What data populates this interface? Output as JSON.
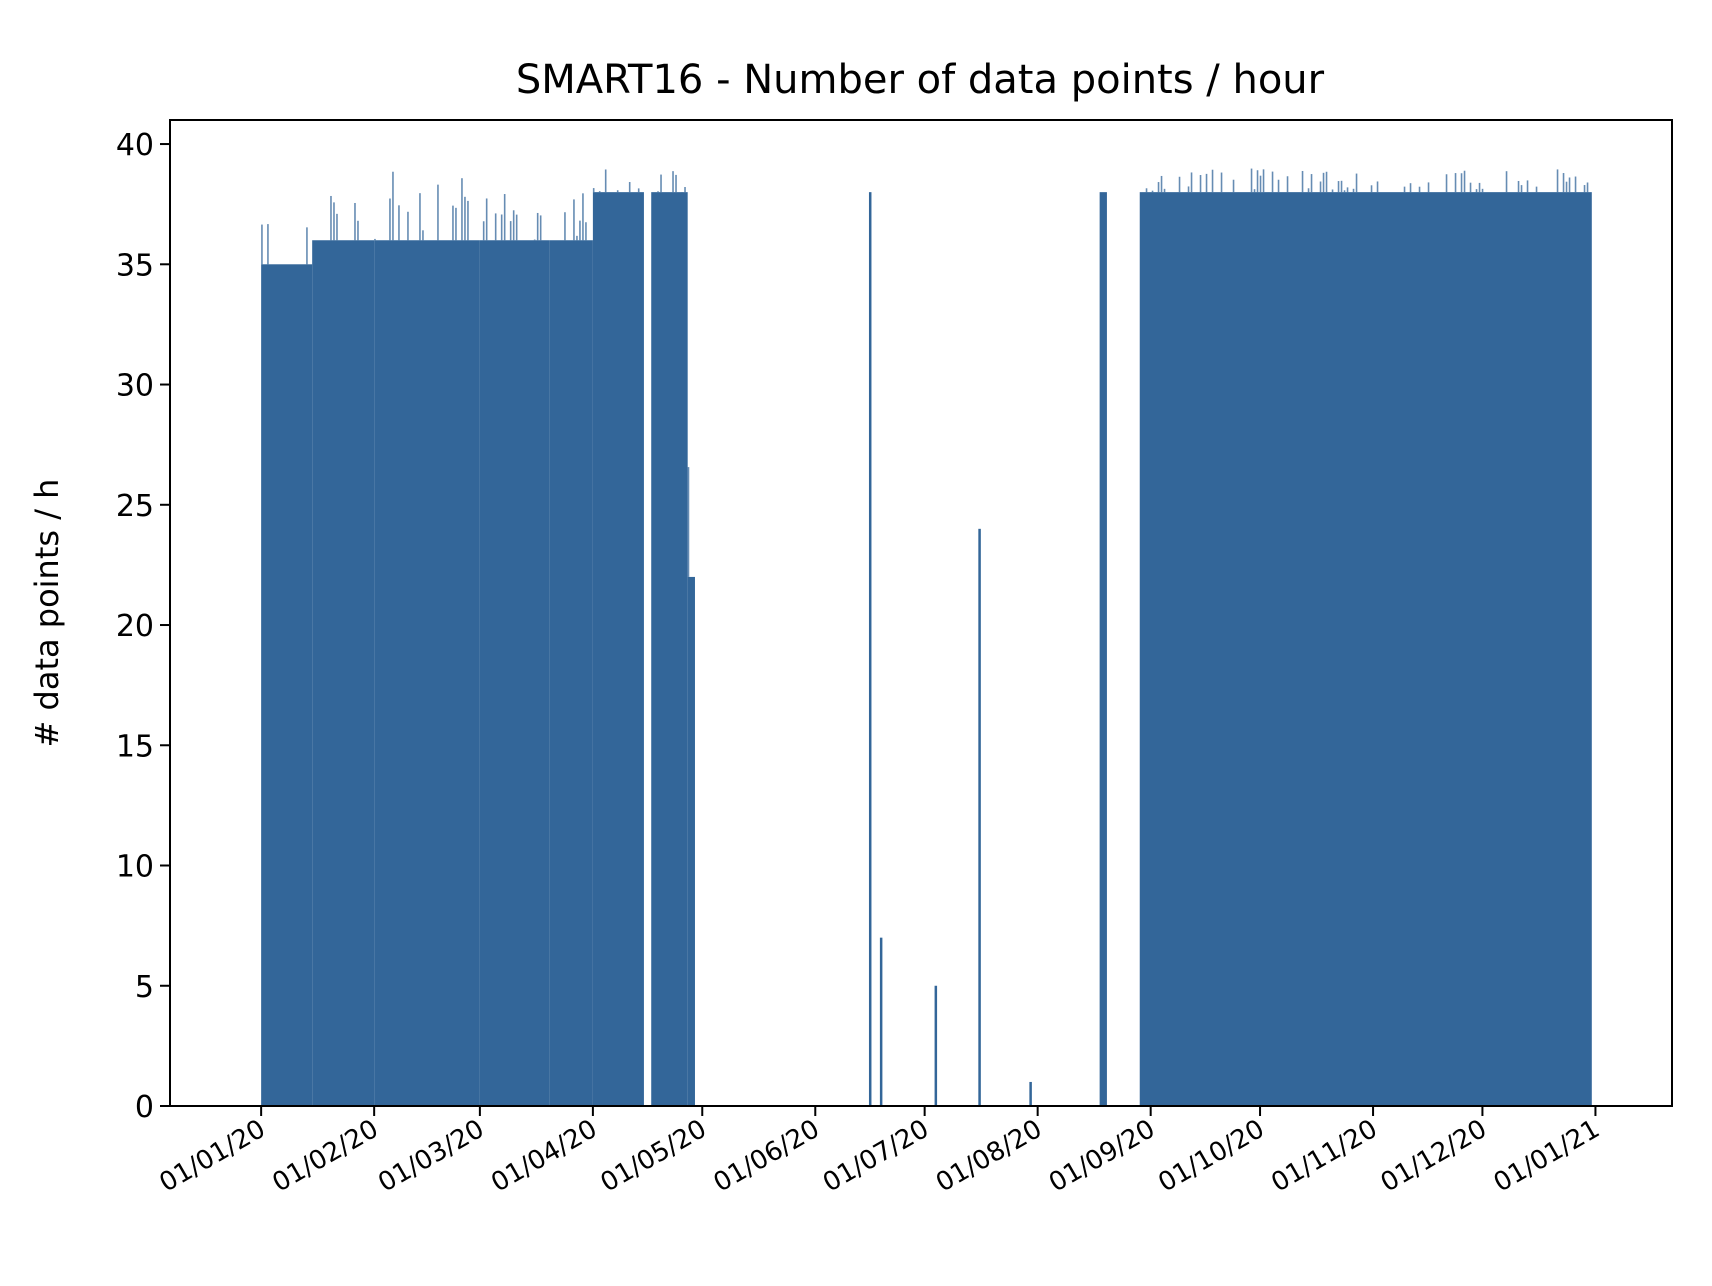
{
  "chart_data": {
    "type": "bar",
    "title": "SMART16 -  Number of data points / hour",
    "xlabel": "",
    "ylabel": "# data points / h",
    "color": "#336699",
    "xlim": [
      "2019-12-07",
      "2021-01-22"
    ],
    "ylim": [
      0,
      41
    ],
    "yticks": [
      0,
      5,
      10,
      15,
      20,
      25,
      30,
      35,
      40
    ],
    "xticks": [
      {
        "date": "2020-01-01",
        "label": "01/01/20"
      },
      {
        "date": "2020-02-01",
        "label": "01/02/20"
      },
      {
        "date": "2020-03-01",
        "label": "01/03/20"
      },
      {
        "date": "2020-04-01",
        "label": "01/04/20"
      },
      {
        "date": "2020-05-01",
        "label": "01/05/20"
      },
      {
        "date": "2020-06-01",
        "label": "01/06/20"
      },
      {
        "date": "2020-07-01",
        "label": "01/07/20"
      },
      {
        "date": "2020-08-01",
        "label": "01/08/20"
      },
      {
        "date": "2020-09-01",
        "label": "01/09/20"
      },
      {
        "date": "2020-10-01",
        "label": "01/10/20"
      },
      {
        "date": "2020-11-01",
        "label": "01/11/20"
      },
      {
        "date": "2020-12-01",
        "label": "01/12/20"
      },
      {
        "date": "2021-01-01",
        "label": "01/01/21"
      }
    ],
    "segments": [
      {
        "start": "2020-01-01",
        "end": "2020-01-15",
        "base": 35,
        "peak": 37
      },
      {
        "start": "2020-01-15",
        "end": "2020-02-01",
        "base": 36,
        "peak": 38
      },
      {
        "start": "2020-02-01",
        "end": "2020-03-01",
        "base": 36,
        "peak": 39
      },
      {
        "start": "2020-03-01",
        "end": "2020-03-20",
        "base": 36,
        "peak": 38
      },
      {
        "start": "2020-03-20",
        "end": "2020-04-01",
        "base": 36,
        "peak": 38
      },
      {
        "start": "2020-04-01",
        "end": "2020-04-15",
        "base": 38,
        "peak": 39
      },
      {
        "start": "2020-04-17",
        "end": "2020-04-27",
        "base": 38,
        "peak": 39
      },
      {
        "start": "2020-04-27",
        "end": "2020-04-29",
        "base": 22,
        "peak": 39
      },
      {
        "start": "2020-08-18",
        "end": "2020-08-20",
        "base": 38,
        "peak": 39
      },
      {
        "start": "2020-08-29",
        "end": "2020-12-31",
        "base": 38,
        "peak": 39
      }
    ],
    "spikes": [
      {
        "date": "2020-06-16",
        "value": 38
      },
      {
        "date": "2020-06-19",
        "value": 7
      },
      {
        "date": "2020-07-04",
        "value": 5
      },
      {
        "date": "2020-07-16",
        "value": 24
      },
      {
        "date": "2020-07-30",
        "value": 1
      }
    ]
  }
}
